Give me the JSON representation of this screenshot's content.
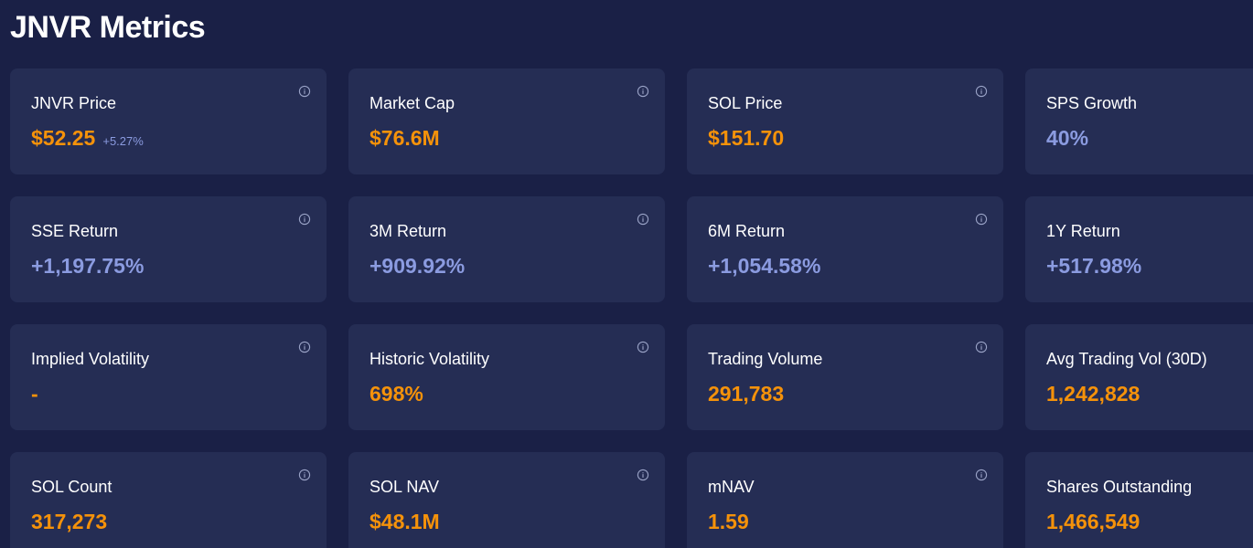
{
  "page": {
    "title": "JNVR Metrics"
  },
  "colors": {
    "background": "#1a2046",
    "card": "#252d54",
    "accent_orange": "#f5920a",
    "accent_blue": "#8b9be0"
  },
  "cards": [
    {
      "label": "JNVR Price",
      "value": "$52.25",
      "change": "+5.27%",
      "tone": "orange",
      "icon": "info-icon"
    },
    {
      "label": "Market Cap",
      "value": "$76.6M",
      "change": "",
      "tone": "orange",
      "icon": "info-icon"
    },
    {
      "label": "SOL Price",
      "value": "$151.70",
      "change": "",
      "tone": "orange",
      "icon": "info-icon"
    },
    {
      "label": "SPS Growth",
      "value": "40%",
      "change": "",
      "tone": "blue",
      "icon": "info-icon"
    },
    {
      "label": "SSE Return",
      "value": "+1,197.75%",
      "change": "",
      "tone": "blue",
      "icon": "info-icon"
    },
    {
      "label": "3M Return",
      "value": "+909.92%",
      "change": "",
      "tone": "blue",
      "icon": "info-icon"
    },
    {
      "label": "6M Return",
      "value": "+1,054.58%",
      "change": "",
      "tone": "blue",
      "icon": "info-icon"
    },
    {
      "label": "1Y Return",
      "value": "+517.98%",
      "change": "",
      "tone": "blue",
      "icon": "info-icon"
    },
    {
      "label": "Implied Volatility",
      "value": "-",
      "change": "",
      "tone": "orange",
      "icon": "info-icon"
    },
    {
      "label": "Historic Volatility",
      "value": "698%",
      "change": "",
      "tone": "orange",
      "icon": "info-icon"
    },
    {
      "label": "Trading Volume",
      "value": "291,783",
      "change": "",
      "tone": "orange",
      "icon": "info-icon"
    },
    {
      "label": "Avg Trading Vol (30D)",
      "value": "1,242,828",
      "change": "",
      "tone": "orange",
      "icon": "info-icon"
    },
    {
      "label": "SOL Count",
      "value": "317,273",
      "change": "",
      "tone": "orange",
      "icon": "info-icon"
    },
    {
      "label": "SOL NAV",
      "value": "$48.1M",
      "change": "",
      "tone": "orange",
      "icon": "info-icon"
    },
    {
      "label": "mNAV",
      "value": "1.59",
      "change": "",
      "tone": "orange",
      "icon": "info-icon"
    },
    {
      "label": "Shares Outstanding",
      "value": "1,466,549",
      "change": "",
      "tone": "orange",
      "icon": "info-icon"
    }
  ]
}
